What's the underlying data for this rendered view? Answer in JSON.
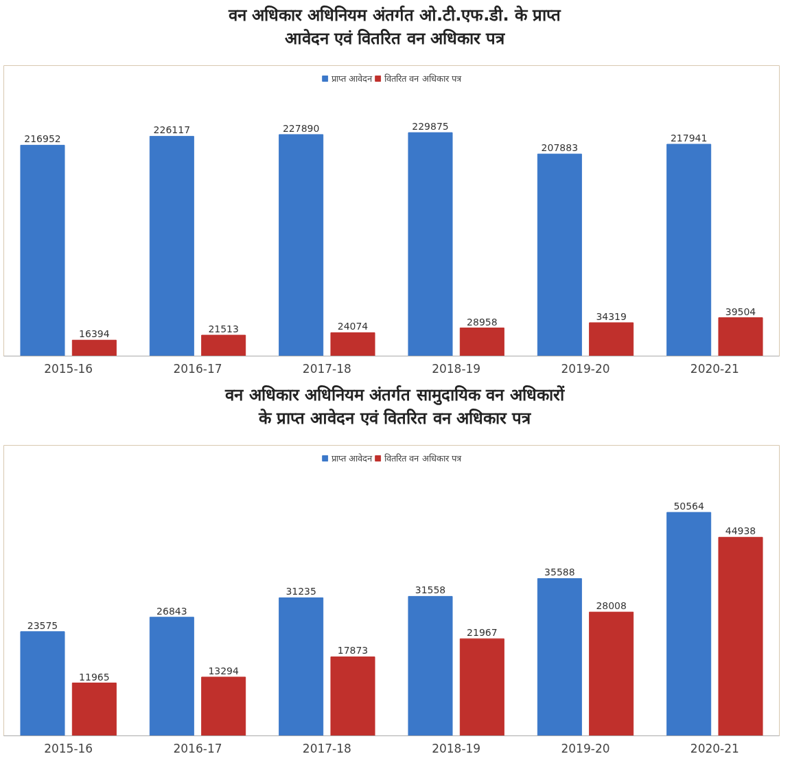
{
  "chart_data": [
    {
      "type": "bar",
      "title": "वन अधिकार अधिनियम अंतर्गत ओ.टी.एफ.डी. के प्राप्त\nआवेदन एवं वितरित वन अधिकार पत्र",
      "categories": [
        "2015-16",
        "2016-17",
        "2017-18",
        "2018-19",
        "2019-20",
        "2020-21"
      ],
      "series": [
        {
          "name": "प्राप्त आवेदन",
          "color": "#3b78c9",
          "values": [
            216952,
            226117,
            227890,
            229875,
            207883,
            217941
          ]
        },
        {
          "name": "वितरित वन अधिकार पत्र",
          "color": "#c0302c",
          "values": [
            16394,
            21513,
            24074,
            28958,
            34319,
            39504
          ]
        }
      ],
      "tick_labels": "x",
      "data_labels": true,
      "legend": "top",
      "grid": false
    },
    {
      "type": "bar",
      "title": "वन अधिकार अधिनियम अंतर्गत सामुदायिक वन अधिकारों\nके प्राप्त आवेदन एवं वितरित वन अधिकार पत्र",
      "categories": [
        "2015-16",
        "2016-17",
        "2017-18",
        "2018-19",
        "2019-20",
        "2020-21"
      ],
      "series": [
        {
          "name": "प्राप्त आवेदन",
          "color": "#3b78c9",
          "values": [
            23575,
            26843,
            31235,
            31558,
            35588,
            50564
          ]
        },
        {
          "name": "वितरित वन अधिकार पत्र",
          "color": "#c0302c",
          "values": [
            11965,
            13294,
            17873,
            21967,
            28008,
            44938
          ]
        }
      ],
      "tick_labels": "x",
      "data_labels": true,
      "legend": "top",
      "grid": false
    }
  ]
}
